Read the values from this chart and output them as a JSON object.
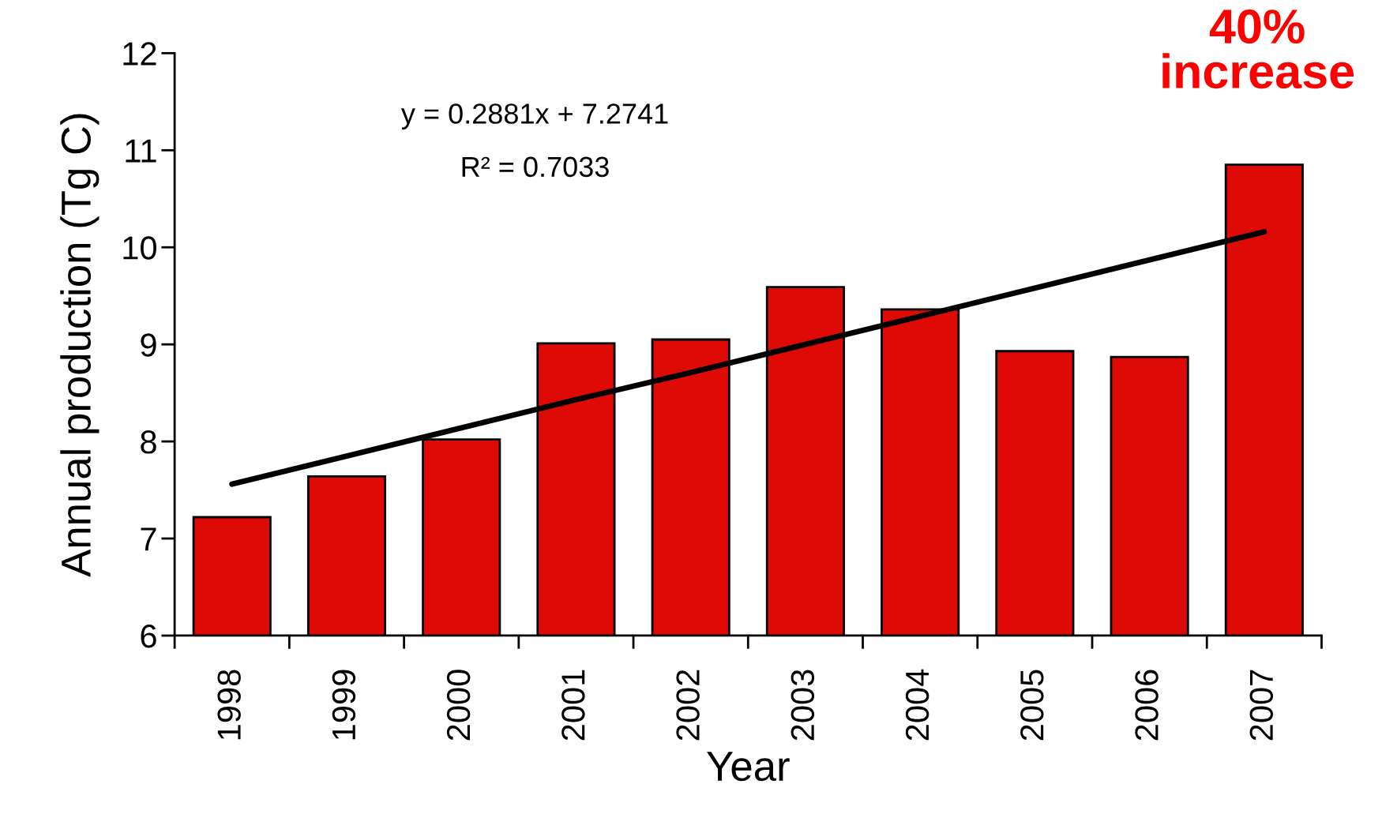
{
  "chart_data": {
    "type": "bar",
    "xlabel": "Year",
    "ylabel": "Annual production (Tg C)",
    "categories": [
      "1998",
      "1999",
      "2000",
      "2001",
      "2002",
      "2003",
      "2004",
      "2005",
      "2006",
      "2007"
    ],
    "series": [
      {
        "color": "#dd0a06",
        "values": [
          7.22,
          7.64,
          8.02,
          9.01,
          9.05,
          9.59,
          9.36,
          8.93,
          8.87,
          10.85
        ]
      },
      {
        "type": "line",
        "color": "#000000",
        "values": [
          7.56,
          7.85,
          8.14,
          8.43,
          8.71,
          9.0,
          9.29,
          9.58,
          9.87,
          10.16
        ]
      }
    ],
    "ylim": [
      6,
      12
    ],
    "yticks": [
      6,
      7,
      8,
      9,
      10,
      11,
      12
    ],
    "grid": false,
    "legend": false,
    "annotations": [
      "y = 0.2881x + 7.2741",
      "R² = 0.7033",
      "40%\nincrease"
    ]
  }
}
